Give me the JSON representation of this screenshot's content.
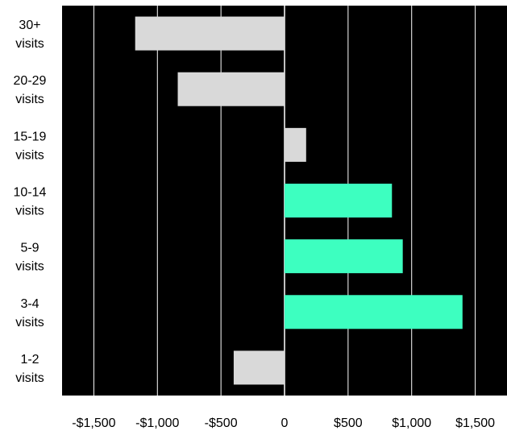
{
  "chart_data": {
    "type": "bar",
    "orientation": "horizontal",
    "categories": [
      [
        "30+",
        "visits"
      ],
      [
        "20-29",
        "visits"
      ],
      [
        "15-19",
        "visits"
      ],
      [
        "10-14",
        "visits"
      ],
      [
        "5-9",
        "visits"
      ],
      [
        "3-4",
        "visits"
      ],
      [
        "1-2",
        "visits"
      ]
    ],
    "values": [
      -1175,
      -840,
      170,
      845,
      930,
      1400,
      -400
    ],
    "xlim": [
      -1750,
      1750
    ],
    "xticks": [
      -1500,
      -1000,
      -500,
      0,
      500,
      1000,
      1500
    ],
    "xtick_labels": [
      "-$1,500",
      "-$1,000",
      "-$500",
      "0",
      "$500",
      "$1,000",
      "$1,500"
    ],
    "colors": {
      "background": "#000000",
      "grid": "#ffffff",
      "negative": "#d9d9d9",
      "positive": "#3dffc0",
      "low_positive": "#d9d9d9"
    },
    "grid": true,
    "title": "",
    "xlabel": "",
    "ylabel": ""
  }
}
